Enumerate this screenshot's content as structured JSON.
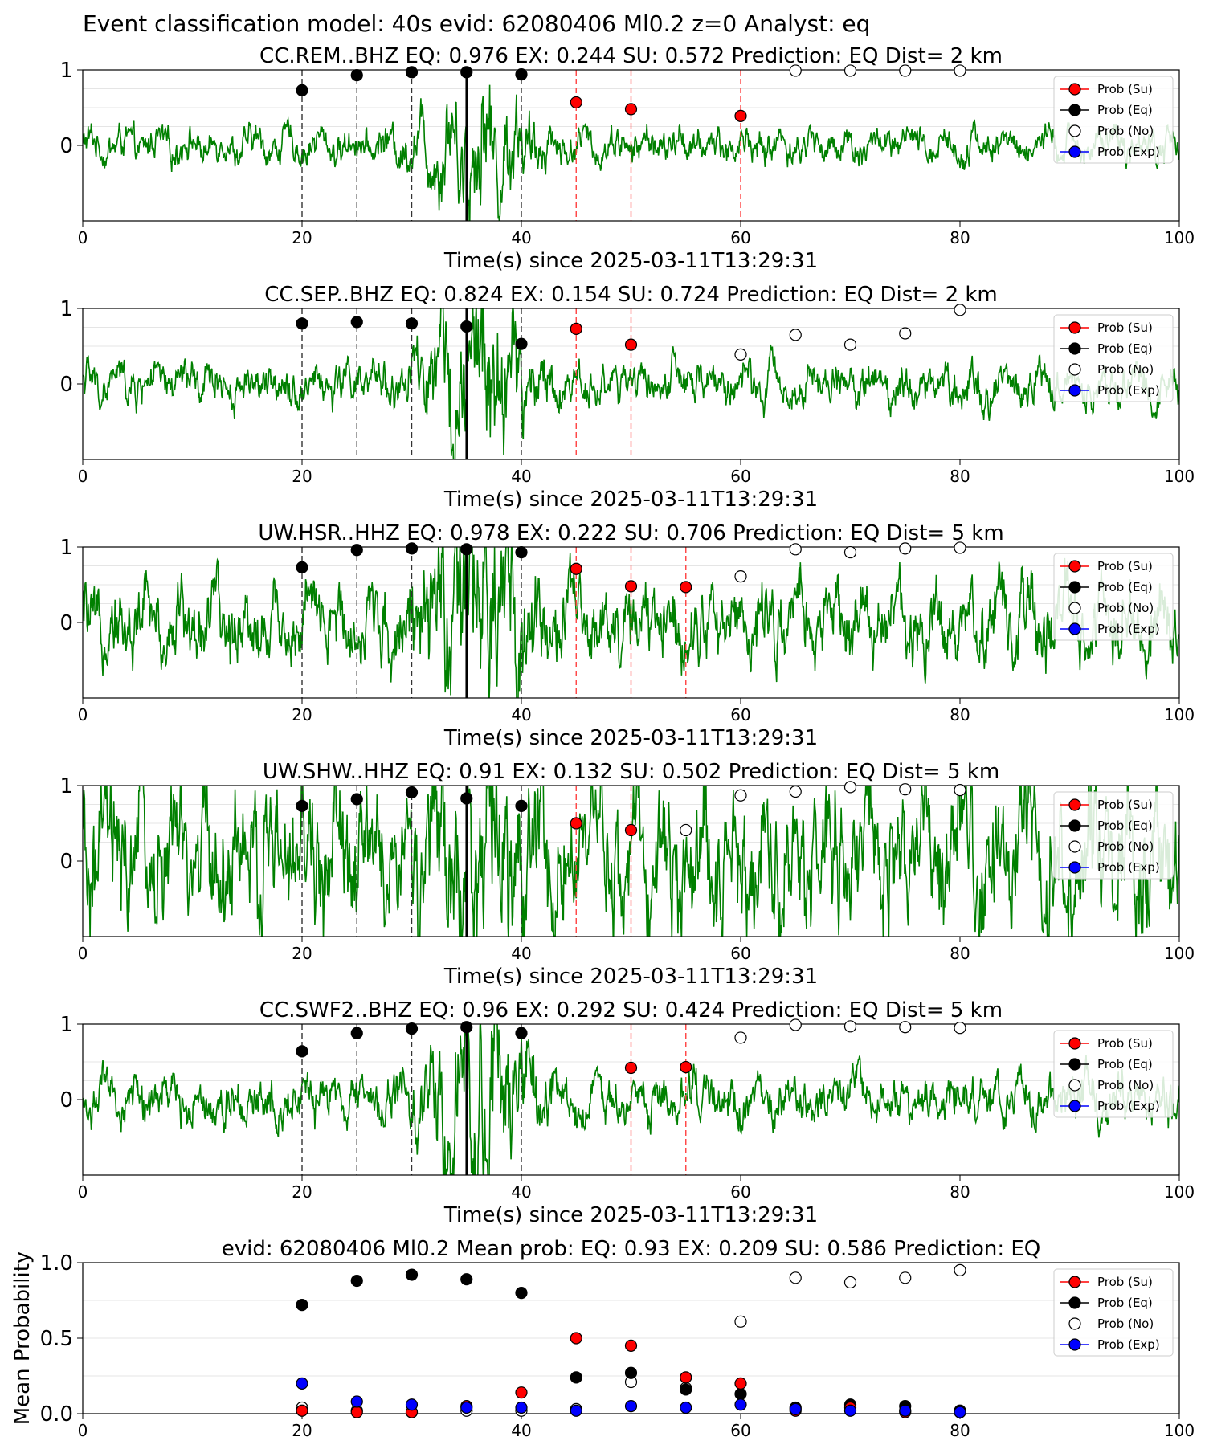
{
  "suptitle": "Event classification model: 40s evid: 62080406 Ml0.2 z=0 Analyst: eq",
  "legend": [
    "Prob (Su)",
    "Prob (Eq)",
    "Prob (No)",
    "Prob (Exp)"
  ],
  "colors": {
    "su": "#ff0000",
    "eq": "#000000",
    "no": "#ffffff",
    "exp": "#0000ff",
    "trace": "#008000",
    "trace_faded": "#b8d8b8"
  },
  "chart_data": [
    {
      "type": "scatter",
      "title": "CC.REM..BHZ   EQ: 0.976  EX: 0.244  SU: 0.572   Prediction: EQ    Dist= 2 km",
      "xlabel": "Time(s) since 2025-03-11T13:29:31",
      "ylabel": "",
      "xlim": [
        0,
        100
      ],
      "xticks": [
        0,
        20,
        40,
        60,
        80,
        100
      ],
      "yticks": [
        0,
        1
      ],
      "trace_amp": 0.18,
      "trace_burst": 0.55,
      "pick_time": 35,
      "eq_points": [
        [
          20,
          0.73
        ],
        [
          25,
          0.93
        ],
        [
          30,
          0.97
        ],
        [
          35,
          0.97
        ],
        [
          40,
          0.94
        ]
      ],
      "su_points": [
        [
          45,
          0.57
        ],
        [
          50,
          0.48
        ],
        [
          60,
          0.39
        ]
      ],
      "no_points": [
        [
          65,
          0.99
        ],
        [
          70,
          0.99
        ],
        [
          75,
          0.99
        ],
        [
          80,
          0.99
        ]
      ],
      "exp_points": [],
      "black_lines": [
        20,
        25,
        30,
        35,
        40
      ],
      "red_lines": [
        45,
        50,
        60
      ]
    },
    {
      "type": "scatter",
      "title": "CC.SEP..BHZ   EQ: 0.824  EX: 0.154  SU: 0.724   Prediction: EQ    Dist= 2 km",
      "xlabel": "Time(s) since 2025-03-11T13:29:31",
      "ylabel": "",
      "xlim": [
        0,
        100
      ],
      "xticks": [
        0,
        20,
        40,
        60,
        80,
        100
      ],
      "yticks": [
        0,
        1
      ],
      "trace_amp": 0.22,
      "trace_burst": 0.75,
      "pick_time": 35,
      "eq_points": [
        [
          20,
          0.8
        ],
        [
          25,
          0.82
        ],
        [
          30,
          0.8
        ],
        [
          35,
          0.76
        ],
        [
          40,
          0.53
        ]
      ],
      "su_points": [
        [
          45,
          0.73
        ],
        [
          50,
          0.52
        ]
      ],
      "no_points": [
        [
          60,
          0.39
        ],
        [
          65,
          0.65
        ],
        [
          70,
          0.52
        ],
        [
          75,
          0.67
        ],
        [
          80,
          0.98
        ]
      ],
      "exp_points": [],
      "black_lines": [
        20,
        25,
        30,
        35,
        40
      ],
      "red_lines": [
        45,
        50
      ]
    },
    {
      "type": "scatter",
      "title": "UW.HSR..HHZ   EQ: 0.978  EX: 0.222  SU: 0.706   Prediction: EQ    Dist= 5 km",
      "xlabel": "Time(s) since 2025-03-11T13:29:31",
      "ylabel": "",
      "xlim": [
        0,
        100
      ],
      "xticks": [
        0,
        20,
        40,
        60,
        80,
        100
      ],
      "yticks": [
        0,
        1
      ],
      "trace_amp": 0.4,
      "trace_burst": 0.75,
      "pick_time": 35,
      "eq_points": [
        [
          20,
          0.73
        ],
        [
          25,
          0.96
        ],
        [
          30,
          0.98
        ],
        [
          35,
          0.97
        ],
        [
          40,
          0.93
        ]
      ],
      "su_points": [
        [
          45,
          0.71
        ],
        [
          50,
          0.48
        ],
        [
          55,
          0.47
        ]
      ],
      "no_points": [
        [
          60,
          0.61
        ],
        [
          65,
          0.97
        ],
        [
          70,
          0.93
        ],
        [
          75,
          0.98
        ],
        [
          80,
          0.99
        ]
      ],
      "exp_points": [],
      "black_lines": [
        20,
        25,
        30,
        35,
        40
      ],
      "red_lines": [
        45,
        50,
        55
      ]
    },
    {
      "type": "scatter",
      "title": "UW.SHW..HHZ   EQ: 0.91  EX: 0.132  SU: 0.502   Prediction: EQ    Dist= 5 km",
      "xlabel": "Time(s) since 2025-03-11T13:29:31",
      "ylabel": "",
      "xlim": [
        0,
        100
      ],
      "xticks": [
        0,
        20,
        40,
        60,
        80,
        100
      ],
      "yticks": [
        0,
        1
      ],
      "trace_amp": 0.7,
      "trace_burst": 0.5,
      "pick_time": 35,
      "eq_points": [
        [
          20,
          0.73
        ],
        [
          25,
          0.82
        ],
        [
          30,
          0.91
        ],
        [
          35,
          0.83
        ],
        [
          40,
          0.73
        ]
      ],
      "su_points": [
        [
          45,
          0.5
        ],
        [
          50,
          0.41
        ]
      ],
      "no_points": [
        [
          55,
          0.41
        ],
        [
          60,
          0.87
        ],
        [
          65,
          0.92
        ],
        [
          70,
          0.98
        ],
        [
          75,
          0.95
        ],
        [
          80,
          0.94
        ]
      ],
      "exp_points": [],
      "black_lines": [
        20,
        25,
        30,
        35,
        40
      ],
      "red_lines": [
        45,
        50
      ]
    },
    {
      "type": "scatter",
      "title": "CC.SWF2..BHZ   EQ: 0.96  EX: 0.292  SU: 0.424   Prediction: EQ    Dist= 5 km",
      "xlabel": "Time(s) since 2025-03-11T13:29:31",
      "ylabel": "",
      "xlim": [
        0,
        100
      ],
      "xticks": [
        0,
        20,
        40,
        60,
        80,
        100
      ],
      "yticks": [
        0,
        1
      ],
      "trace_amp": 0.25,
      "trace_burst": 0.75,
      "pick_time": 35,
      "eq_points": [
        [
          20,
          0.64
        ],
        [
          25,
          0.88
        ],
        [
          30,
          0.94
        ],
        [
          35,
          0.96
        ],
        [
          40,
          0.88
        ]
      ],
      "su_points": [
        [
          50,
          0.42
        ],
        [
          55,
          0.43
        ]
      ],
      "no_points": [
        [
          60,
          0.82
        ],
        [
          65,
          0.99
        ],
        [
          70,
          0.97
        ],
        [
          75,
          0.96
        ],
        [
          80,
          0.95
        ]
      ],
      "exp_points": [],
      "black_lines": [
        20,
        25,
        30,
        35,
        40
      ],
      "red_lines": [
        50,
        55
      ]
    },
    {
      "type": "scatter",
      "title": "evid: 62080406  Ml0.2   Mean prob:    EQ: 0.93  EX: 0.209  SU: 0.586   Prediction: EQ",
      "xlabel": "",
      "ylabel": "Mean Probability",
      "xlim": [
        0,
        100
      ],
      "ylim": [
        0,
        1
      ],
      "xticks": [
        0,
        20,
        40,
        60,
        80,
        100
      ],
      "yticks": [
        0.0,
        0.5,
        1.0
      ],
      "xtick_labels": [
        "0",
        "20",
        "40",
        "60",
        "80",
        "100"
      ],
      "ytick_labels": [
        "0.0",
        "0.5",
        "1.0"
      ],
      "eq_points": [
        [
          20,
          0.72
        ],
        [
          25,
          0.88
        ],
        [
          30,
          0.92
        ],
        [
          35,
          0.89
        ],
        [
          40,
          0.8
        ],
        [
          45,
          0.24
        ],
        [
          50,
          0.27
        ],
        [
          55,
          0.16
        ],
        [
          60,
          0.13
        ],
        [
          65,
          0.04
        ],
        [
          70,
          0.06
        ],
        [
          75,
          0.05
        ],
        [
          80,
          0.02
        ]
      ],
      "su_points": [
        [
          20,
          0.02
        ],
        [
          25,
          0.01
        ],
        [
          30,
          0.01
        ],
        [
          35,
          0.05
        ],
        [
          40,
          0.14
        ],
        [
          45,
          0.5
        ],
        [
          50,
          0.45
        ],
        [
          55,
          0.24
        ],
        [
          60,
          0.2
        ],
        [
          65,
          0.02
        ],
        [
          70,
          0.04
        ],
        [
          75,
          0.01
        ],
        [
          80,
          0.01
        ]
      ],
      "no_points": [
        [
          20,
          0.04
        ],
        [
          25,
          0.02
        ],
        [
          30,
          0.01
        ],
        [
          35,
          0.02
        ],
        [
          40,
          0.02
        ],
        [
          45,
          0.03
        ],
        [
          50,
          0.21
        ],
        [
          55,
          0.17
        ],
        [
          60,
          0.61
        ],
        [
          65,
          0.9
        ],
        [
          70,
          0.87
        ],
        [
          75,
          0.9
        ],
        [
          80,
          0.95
        ]
      ],
      "exp_points": [
        [
          20,
          0.2
        ],
        [
          25,
          0.08
        ],
        [
          30,
          0.06
        ],
        [
          35,
          0.04
        ],
        [
          40,
          0.04
        ],
        [
          45,
          0.02
        ],
        [
          50,
          0.05
        ],
        [
          55,
          0.04
        ],
        [
          60,
          0.06
        ],
        [
          65,
          0.03
        ],
        [
          70,
          0.02
        ],
        [
          75,
          0.02
        ],
        [
          80,
          0.01
        ]
      ]
    }
  ]
}
